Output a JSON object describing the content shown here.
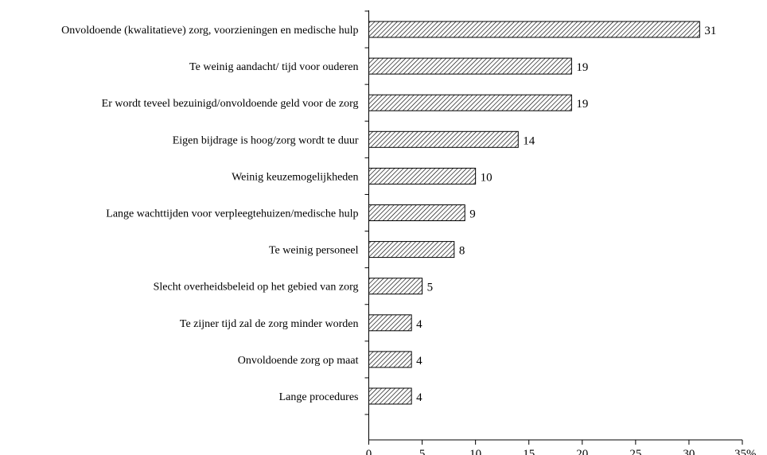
{
  "chart_data": {
    "type": "bar",
    "orientation": "horizontal",
    "categories": [
      "Onvoldoende (kwalitatieve) zorg, voorzieningen en medische hulp",
      "Te weinig aandacht/ tijd voor ouderen",
      "Er wordt teveel bezuinigd/onvoldoende geld voor de zorg",
      "Eigen bijdrage is hoog/zorg wordt te duur",
      "Weinig keuzemogelijkheden",
      "Lange wachttijden voor verpleegtehuizen/medische hulp",
      "Te weinig personeel",
      "Slecht overheidsbeleid op het gebied van zorg",
      "Te zijner tijd zal de zorg minder worden",
      "Onvoldoende zorg op maat",
      "Lange procedures"
    ],
    "values": [
      31,
      19,
      19,
      14,
      10,
      9,
      8,
      5,
      4,
      4,
      4
    ],
    "value_labels": [
      "31",
      "19",
      "19",
      "14",
      "10",
      "9",
      "8",
      "5",
      "4",
      "4",
      "4"
    ],
    "xlim": [
      0,
      35
    ],
    "x_ticks": [
      "0",
      "5",
      "10",
      "15",
      "20",
      "25",
      "30",
      "35%"
    ],
    "x_tick_values": [
      0,
      5,
      10,
      15,
      20,
      25,
      30,
      35
    ],
    "bar_fill": "hatched",
    "bar_color": "#000000",
    "background": "#ffffff",
    "grid": false,
    "legend": false
  }
}
